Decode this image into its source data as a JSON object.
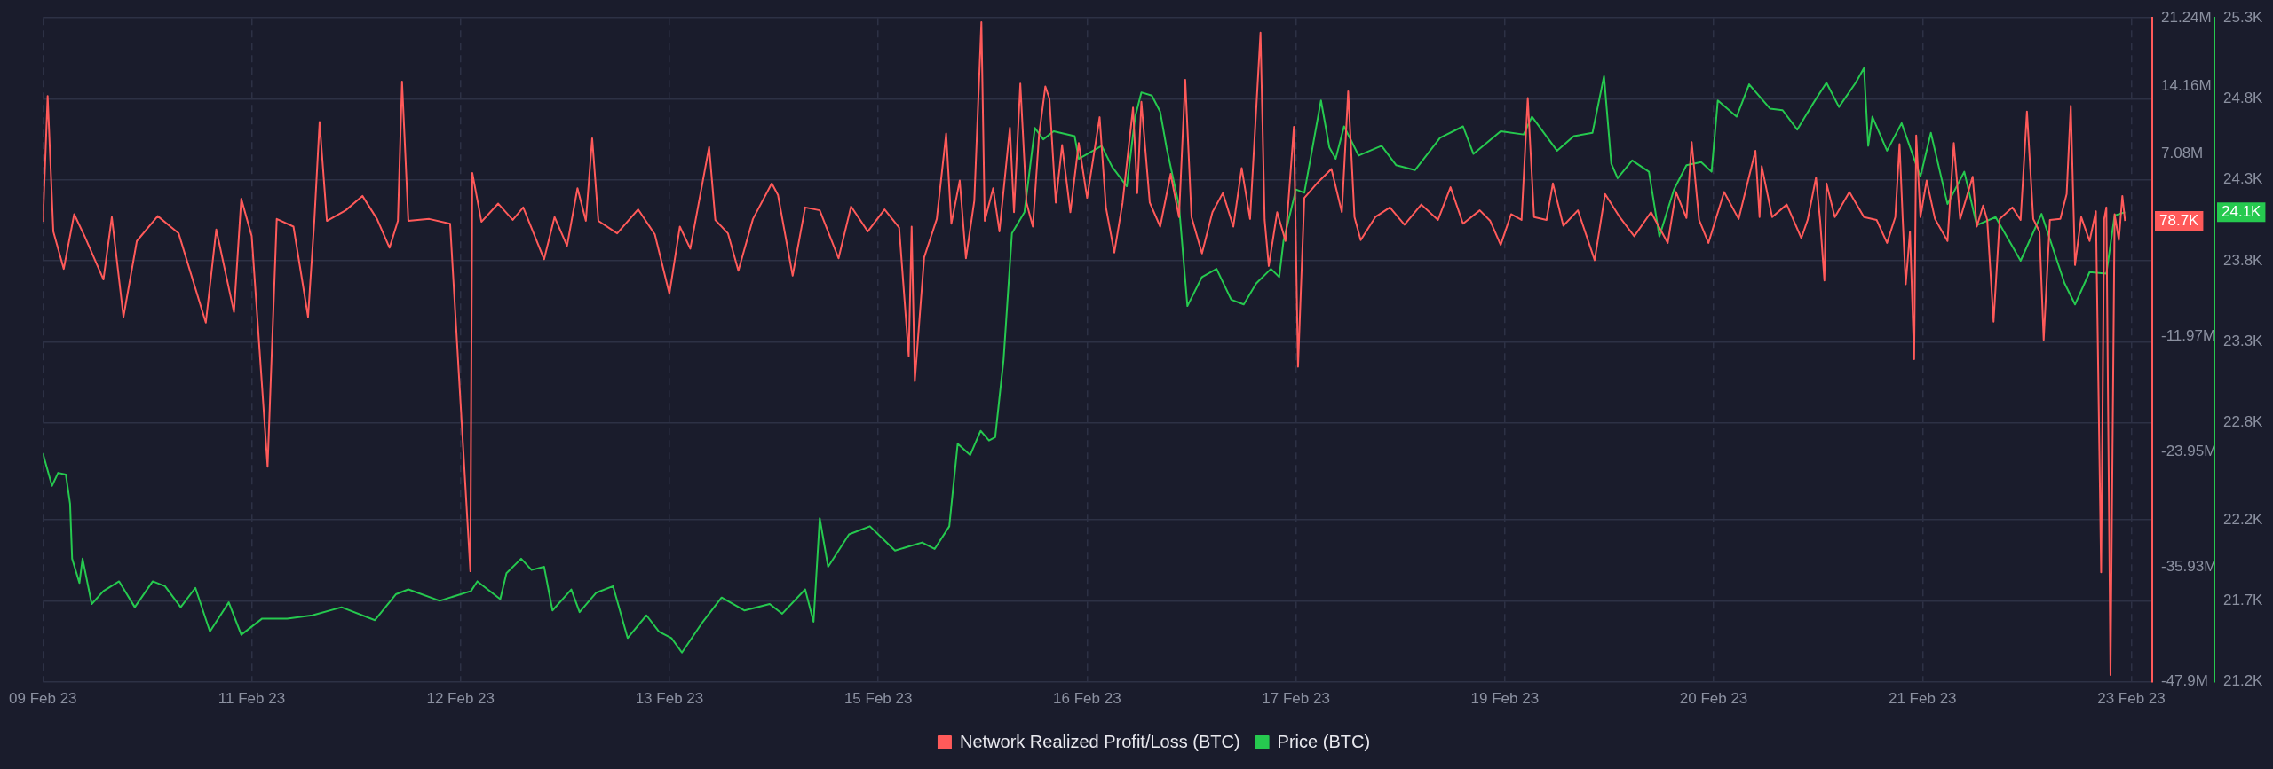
{
  "chart_data": {
    "type": "line",
    "legend": "bottom",
    "grid": true,
    "marker": "none",
    "line_style": "solid",
    "xlim": [
      "--02-09T18:00",
      "--02-23T05:12"
    ],
    "xticks": [
      {
        "value": "--02-09T18:00",
        "label": "09 Feb 23"
      },
      {
        "value": "--02-11T02:00",
        "label": "11 Feb 23"
      },
      {
        "value": "--02-12T10:00",
        "label": "12 Feb 23"
      },
      {
        "value": "--02-13T18:00",
        "label": "13 Feb 23"
      },
      {
        "value": "--02-15T02:00",
        "label": "15 Feb 23"
      },
      {
        "value": "--02-16T10:00",
        "label": "16 Feb 23"
      },
      {
        "value": "--02-17T18:00",
        "label": "17 Feb 23"
      },
      {
        "value": "--02-19T02:00",
        "label": "19 Feb 23"
      },
      {
        "value": "--02-20T10:00",
        "label": "20 Feb 23"
      },
      {
        "value": "--02-21T18:00",
        "label": "21 Feb 23"
      },
      {
        "value": "--02-23T02:00",
        "label": "23 Feb 23"
      }
    ],
    "ylim": [
      -47.9,
      21.24
    ],
    "yticks": [
      {
        "value": 21.24,
        "label": "21.24M"
      },
      {
        "value": 14.16,
        "label": "14.16M"
      },
      {
        "value": 7.08,
        "label": "7.08M"
      },
      {
        "value": -11.97,
        "label": "-11.97M"
      },
      {
        "value": -23.95,
        "label": "-23.95M"
      },
      {
        "value": -35.93,
        "label": "-35.93M"
      },
      {
        "value": -47.9,
        "label": "-47.9M"
      }
    ],
    "y2lim": [
      21.2,
      25.3
    ],
    "y2ticks": [
      {
        "value": 21.2,
        "label": "21.2K"
      },
      {
        "value": 21.7,
        "label": "21.7K"
      },
      {
        "value": 22.2,
        "label": "22.2K"
      },
      {
        "value": 22.8,
        "label": "22.8K"
      },
      {
        "value": 23.3,
        "label": "23.3K"
      },
      {
        "value": 23.8,
        "label": "23.8K"
      },
      {
        "value": 24.3,
        "label": "24.3K"
      },
      {
        "value": 24.8,
        "label": "24.8K"
      },
      {
        "value": 25.3,
        "label": "25.3K"
      }
    ],
    "annotations": [
      "78.7K",
      "24.1K"
    ],
    "series": [
      {
        "name": "Network Realized Profit/Loss (BTC)",
        "color": "#ff5a5a",
        "axis": "y",
        "x": [
          "--02-09T18:00",
          "--02-09T18:44",
          "--02-09T19:36",
          "--02-09T21:12",
          "--02-09T22:48",
          "--02-10T00:24",
          "--02-10T03:17",
          "--02-10T04:34",
          "--02-10T06:21",
          "--02-10T08:24",
          "--02-10T11:36",
          "--02-10T14:48",
          "--02-10T18:58",
          "--02-10T20:34",
          "--02-10T23:17",
          "--02-11T00:24",
          "--02-11T02:00",
          "--02-11T04:26",
          "--02-11T05:50",
          "--02-11T08:24",
          "--02-11T10:38",
          "--02-11T11:36",
          "--02-11T12:24",
          "--02-11T13:31",
          "--02-11T16:24",
          "--02-11T18:58",
          "--02-11T21:12",
          "--02-11T23:07",
          "--02-12T00:24",
          "--02-12T01:02",
          "--02-12T02:00",
          "--02-12T05:12",
          "--02-12T08:24",
          "--02-12T11:30",
          "--02-12T11:48",
          "--02-12T13:12",
          "--02-12T15:46",
          "--02-12T18:00",
          "--02-12T19:36",
          "--02-12T22:48",
          "--02-13T00:24",
          "--02-13T02:19",
          "--02-13T03:55",
          "--02-13T05:12",
          "--02-13T06:10",
          "--02-13T07:07",
          "--02-13T10:00",
          "--02-13T13:12",
          "--02-13T15:46",
          "--02-13T18:00",
          "--02-13T19:36",
          "--02-13T21:12",
          "--02-14T00:05",
          "--02-14T01:02",
          "--02-14T02:58",
          "--02-14T04:34",
          "--02-14T06:48",
          "--02-14T09:41",
          "--02-14T10:38",
          "--02-14T12:53",
          "--02-14T14:48",
          "--02-14T17:02",
          "--02-14T19:55",
          "--02-14T21:50",
          "--02-15T00:24",
          "--02-15T02:58",
          "--02-15T05:12",
          "--02-15T06:40",
          "--02-15T07:07",
          "--02-15T07:36",
          "--02-15T09:02",
          "--02-15T10:58",
          "--02-15T12:24",
          "--02-15T13:12",
          "--02-15T14:29",
          "--02-15T15:26",
          "--02-15T16:43",
          "--02-15T17:48",
          "--02-15T18:19",
          "--02-15T19:36",
          "--02-15T20:34",
          "--02-15T22:10",
          "--02-15T22:48",
          "--02-15T23:46",
          "--02-16T00:43",
          "--02-16T01:41",
          "--02-16T02:38",
          "--02-16T03:36",
          "--02-16T04:14",
          "--02-16T05:12",
          "--02-16T06:10",
          "--02-16T07:26",
          "--02-16T08:43",
          "--02-16T10:00",
          "--02-16T11:55",
          "--02-16T12:53",
          "--02-16T14:10",
          "--02-16T15:26",
          "--02-16T17:02",
          "--02-16T17:41",
          "--02-16T18:19",
          "--02-16T19:36",
          "--02-16T21:12",
          "--02-16T22:48",
          "--02-17T00:05",
          "--02-17T01:02",
          "--02-17T02:00",
          "--02-17T03:36",
          "--02-17T05:12",
          "--02-17T06:48",
          "--02-17T08:24",
          "--02-17T09:41",
          "--02-17T10:58",
          "--02-17T12:34",
          "--02-17T13:12",
          "--02-17T13:50",
          "--02-17T15:07",
          "--02-17T16:24",
          "--02-17T17:41",
          "--02-17T18:19",
          "--02-17T19:17",
          "--02-17T21:12",
          "--02-17T23:26",
          "--02-18T01:02",
          "--02-18T02:00",
          "--02-18T02:58",
          "--02-18T03:55",
          "--02-18T06:10",
          "--02-18T08:24",
          "--02-18T10:38",
          "--02-18T13:12",
          "--02-18T15:46",
          "--02-18T17:41",
          "--02-18T19:36",
          "--02-18T22:10",
          "--02-18T23:46",
          "--02-19T01:22",
          "--02-19T02:58",
          "--02-19T04:34",
          "--02-19T05:31",
          "--02-19T06:29",
          "--02-19T08:24",
          "--02-19T09:22",
          "--02-19T10:58",
          "--02-19T13:12",
          "--02-19T15:46",
          "--02-19T17:22",
          "--02-19T19:36",
          "--02-19T21:50",
          "--02-20T00:24",
          "--02-20T02:58",
          "--02-20T04:14",
          "--02-20T05:50",
          "--02-20T06:38",
          "--02-20T07:46",
          "--02-20T09:12",
          "--02-20T11:36",
          "--02-20T13:50",
          "--02-20T16:24",
          "--02-20T17:02",
          "--02-20T17:22",
          "--02-20T18:58",
          "--02-20T21:12",
          "--02-20T23:26",
          "--02-21T00:24",
          "--02-21T01:41",
          "--02-21T02:19",
          "--02-21T02:58",
          "--02-21T03:17",
          "--02-21T04:34",
          "--02-21T06:48",
          "--02-21T09:02",
          "--02-21T10:58",
          "--02-21T12:34",
          "--02-21T13:50",
          "--02-21T14:29",
          "--02-21T14:58",
          "--02-21T15:26",
          "--02-21T16:05",
          "--02-21T16:43",
          "--02-21T17:02",
          "--02-21T17:41",
          "--02-21T18:38",
          "--02-21T19:55",
          "--02-21T21:50",
          "--02-21T22:48",
          "--02-21T23:46",
          "--02-22T01:41",
          "--02-22T02:19",
          "--02-22T03:17",
          "--02-22T03:55",
          "--02-22T04:53",
          "--02-22T05:50",
          "--02-22T07:46",
          "--02-22T09:02",
          "--02-22T10:00",
          "--02-22T10:58",
          "--02-22T11:55",
          "--02-22T12:34",
          "--02-22T13:31",
          "--02-22T15:07",
          "--02-22T16:05",
          "--02-22T16:43",
          "--02-22T17:22",
          "--02-22T18:19",
          "--02-22T19:36",
          "--02-22T20:34",
          "--02-22T21:22",
          "--02-22T21:50",
          "--02-22T22:10",
          "--02-22T22:48",
          "--02-22T23:26",
          "--02-23T00:05",
          "--02-23T00:37",
          "--02-23T01:02"
        ],
        "values": [
          0,
          13.1,
          -1.0,
          -4.9,
          0.8,
          -1.5,
          -6.0,
          0.5,
          -9.9,
          -2.0,
          0.6,
          -1.2,
          -10.5,
          -0.8,
          -9.4,
          2.4,
          -1.5,
          -25.5,
          0.3,
          -0.5,
          -9.9,
          0.2,
          10.4,
          0.1,
          1.2,
          2.7,
          0.3,
          -2.7,
          0.1,
          14.6,
          0.1,
          0.3,
          -0.2,
          -36.4,
          5.1,
          0,
          1.9,
          0.2,
          1.5,
          -3.9,
          0.5,
          -2.5,
          3.5,
          0.1,
          8.7,
          0.1,
          -1.2,
          1.3,
          -1.3,
          -7.5,
          -0.5,
          -2.8,
          7.8,
          0.2,
          -1.2,
          -5.1,
          0.3,
          4.0,
          2.8,
          -5.6,
          1.5,
          1.2,
          -3.8,
          1.6,
          -1.0,
          1.3,
          -0.6,
          -14.0,
          -0.5,
          -16.6,
          -3.7,
          0.3,
          9.2,
          -0.2,
          4.3,
          -3.8,
          2.2,
          20.8,
          0.1,
          3.5,
          -1.0,
          9.8,
          1.0,
          14.4,
          2.0,
          -0.5,
          9.0,
          14.1,
          12.8,
          2.0,
          8.0,
          1.0,
          8.2,
          2.5,
          10.9,
          1.5,
          -3.2,
          2.0,
          11.9,
          3.0,
          12.5,
          2.0,
          -0.5,
          5.0,
          0.5,
          14.8,
          0.5,
          -3.3,
          1.0,
          3.0,
          -0.5,
          5.6,
          0.3,
          19.7,
          0.2,
          -4.6,
          1.0,
          -2.0,
          9.9,
          -15.1,
          2.5,
          4.0,
          5.5,
          1.0,
          13.6,
          0.5,
          -1.9,
          0.5,
          1.5,
          -0.3,
          1.8,
          0.2,
          3.6,
          -0.2,
          1.2,
          0.1,
          -2.4,
          0.8,
          0.2,
          12.9,
          0.5,
          0.2,
          4.0,
          -0.4,
          1.2,
          -4.0,
          2.9,
          0.5,
          -1.5,
          1.0,
          -2.2,
          3.1,
          0.4,
          8.3,
          0.2,
          -2.2,
          3.1,
          0.3,
          7.4,
          0.5,
          5.8,
          0.5,
          1.8,
          -1.7,
          0.2,
          4.6,
          0.1,
          -6.1,
          4.0,
          0.5,
          3.1,
          0.5,
          0.2,
          -2.2,
          0.5,
          8.1,
          0.3,
          -6.5,
          -1.0,
          -14.3,
          9.0,
          0.5,
          4.3,
          0.3,
          -2.0,
          8.2,
          0.3,
          4.7,
          -0.5,
          1.7,
          0.2,
          -10.4,
          0.3,
          1.5,
          0.2,
          11.5,
          0.3,
          -1.0,
          -12.3,
          0.2,
          0.3,
          2.9,
          12.1,
          -4.5,
          0.5,
          -2.0,
          1.1,
          -36.5,
          0.3,
          1.5,
          -47.2,
          0.8,
          -1.9,
          2.7,
          0.1
        ]
      },
      {
        "name": "Price (BTC)",
        "color": "#26c94f",
        "axis": "y2",
        "x": [
          "--02-09T18:00",
          "--02-09T19:24",
          "--02-09T20:20",
          "--02-09T21:31",
          "--02-09T22:10",
          "--02-09T22:29",
          "--02-09T23:36",
          "--02-10T00:05",
          "--02-10T01:29",
          "--02-10T03:17",
          "--02-10T05:41",
          "--02-10T08:05",
          "--02-10T10:50",
          "--02-10T12:43",
          "--02-10T15:07",
          "--02-10T17:22",
          "--02-10T19:36",
          "--02-10T22:29",
          "--02-11T00:24",
          "--02-11T03:36",
          "--02-11T07:26",
          "--02-11T11:17",
          "--02-11T15:46",
          "--02-11T20:53",
          "--02-12T00:05",
          "--02-12T02:00",
          "--02-12T06:48",
          "--02-12T11:36",
          "--02-12T12:34",
          "--02-12T16:05",
          "--02-12T17:02",
          "--02-12T19:17",
          "--02-12T20:53",
          "--02-12T22:48",
          "--02-13T00:05",
          "--02-13T02:58",
          "--02-13T04:14",
          "--02-13T06:48",
          "--02-13T09:22",
          "--02-13T11:36",
          "--02-13T14:29",
          "--02-13T16:24",
          "--02-13T18:19",
          "--02-13T19:55",
          "--02-13T23:07",
          "--02-14T02:00",
          "--02-14T05:31",
          "--02-14T09:22",
          "--02-14T11:17",
          "--02-14T14:48",
          "--02-14T16:05",
          "--02-14T17:02",
          "--02-14T18:19",
          "--02-14T21:31",
          "--02-15T00:43",
          "--02-15T04:34",
          "--02-15T08:43",
          "--02-15T10:38",
          "--02-15T12:53",
          "--02-15T14:10",
          "--02-15T16:05",
          "--02-15T17:41",
          "--02-15T18:58",
          "--02-15T19:55",
          "--02-15T21:12",
          "--02-15T22:29",
          "--02-16T00:24",
          "--02-16T02:00",
          "--02-16T03:17",
          "--02-16T04:53",
          "--02-16T08:05",
          "--02-16T08:43",
          "--02-16T12:14",
          "--02-16T13:50",
          "--02-16T16:05",
          "--02-16T17:22",
          "--02-16T18:19",
          "--02-16T19:55",
          "--02-16T21:12",
          "--02-16T22:10",
          "--02-17T00:05",
          "--02-17T01:22",
          "--02-17T03:36",
          "--02-17T05:50",
          "--02-17T08:05",
          "--02-17T10:00",
          "--02-17T11:55",
          "--02-17T14:10",
          "--02-17T15:26",
          "--02-17T16:05",
          "--02-17T18:00",
          "--02-17T19:17",
          "--02-17T21:50",
          "--02-17T23:07",
          "--02-18T00:05",
          "--02-18T01:22",
          "--02-18T03:36",
          "--02-18T07:07",
          "--02-18T09:22",
          "--02-18T12:14",
          "--02-18T16:05",
          "--02-18T19:36",
          "--02-18T21:12",
          "--02-19T01:22",
          "--02-19T04:53",
          "--02-19T06:10",
          "--02-19T10:00",
          "--02-19T12:34",
          "--02-19T15:26",
          "--02-19T17:12",
          "--02-19T18:19",
          "--02-19T19:17",
          "--02-19T21:31",
          "--02-20T00:05",
          "--02-20T01:41",
          "--02-20T03:55",
          "--02-20T05:50",
          "--02-20T08:05",
          "--02-20T09:41",
          "--02-20T10:38",
          "--02-20T13:31",
          "--02-20T15:26",
          "--02-20T18:38",
          "--02-20T20:34",
          "--02-20T22:48",
          "--02-21T01:22",
          "--02-21T03:17",
          "--02-21T05:12",
          "--02-21T07:46",
          "--02-21T09:02",
          "--02-21T09:41",
          "--02-21T10:19",
          "--02-21T12:34",
          "--02-21T14:48",
          "--02-21T17:41",
          "--02-21T19:17",
          "--02-21T21:50",
          "--02-22T00:24",
          "--02-22T02:19",
          "--02-22T05:12",
          "--02-22T09:02",
          "--02-22T12:14",
          "--02-22T15:46",
          "--02-22T17:22",
          "--02-22T19:36",
          "--02-22T22:10",
          "--02-22T23:26",
          "--02-23T01:02"
        ],
        "values": [
          22.61,
          22.41,
          22.49,
          22.48,
          22.3,
          21.96,
          21.81,
          21.96,
          21.68,
          21.76,
          21.82,
          21.66,
          21.82,
          21.79,
          21.66,
          21.78,
          21.51,
          21.69,
          21.49,
          21.59,
          21.59,
          21.61,
          21.66,
          21.58,
          21.74,
          21.77,
          21.7,
          21.76,
          21.82,
          21.71,
          21.87,
          21.96,
          21.89,
          21.91,
          21.64,
          21.77,
          21.63,
          21.75,
          21.79,
          21.47,
          21.61,
          21.51,
          21.47,
          21.38,
          21.57,
          21.72,
          21.64,
          21.68,
          21.62,
          21.77,
          21.57,
          22.21,
          21.91,
          22.11,
          22.16,
          22.01,
          22.06,
          22.02,
          22.16,
          22.67,
          22.6,
          22.75,
          22.69,
          22.71,
          23.19,
          23.97,
          24.1,
          24.62,
          24.55,
          24.6,
          24.57,
          24.43,
          24.51,
          24.38,
          24.26,
          24.69,
          24.84,
          24.82,
          24.72,
          24.5,
          24.14,
          23.52,
          23.7,
          23.75,
          23.56,
          23.53,
          23.66,
          23.75,
          23.7,
          23.92,
          24.24,
          24.22,
          24.79,
          24.5,
          24.43,
          24.63,
          24.45,
          24.51,
          24.39,
          24.36,
          24.56,
          24.63,
          24.46,
          24.6,
          24.58,
          24.69,
          24.48,
          24.57,
          24.59,
          24.94,
          24.4,
          24.31,
          24.42,
          24.35,
          23.95,
          24.24,
          24.39,
          24.41,
          24.35,
          24.79,
          24.69,
          24.89,
          24.74,
          24.73,
          24.61,
          24.78,
          24.9,
          24.75,
          24.9,
          24.99,
          24.51,
          24.69,
          24.48,
          24.65,
          24.32,
          24.59,
          24.15,
          24.35,
          24.02,
          24.07,
          23.8,
          24.09,
          23.66,
          23.53,
          23.73,
          23.72,
          24.08,
          24.1
        ]
      }
    ]
  }
}
